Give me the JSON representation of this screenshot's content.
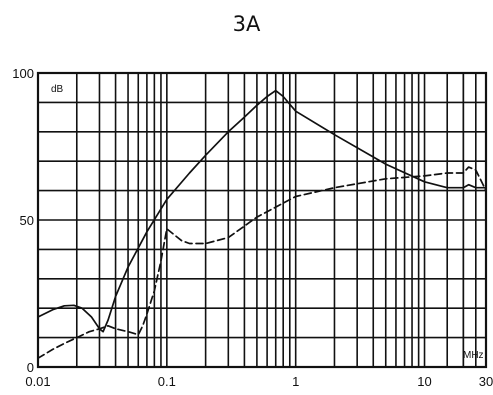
{
  "chart_data": {
    "type": "line",
    "title": "3A",
    "x_unit_label": "MHz",
    "y_unit_label": "dB",
    "x_scale": "log",
    "xlim": [
      0.01,
      30
    ],
    "ylim": [
      0,
      100
    ],
    "grid": true,
    "x_tick_labels": [
      {
        "value": 0.01,
        "label": "0.01"
      },
      {
        "value": 0.1,
        "label": "0.1"
      },
      {
        "value": 1,
        "label": "1"
      },
      {
        "value": 10,
        "label": "10"
      },
      {
        "value": 30,
        "label": "30"
      }
    ],
    "y_tick_labels": [
      {
        "value": 0,
        "label": "0"
      },
      {
        "value": 50,
        "label": "50"
      },
      {
        "value": 100,
        "label": "100"
      }
    ],
    "series": [
      {
        "style": "solid",
        "x": [
          0.01,
          0.013,
          0.016,
          0.019,
          0.022,
          0.026,
          0.03,
          0.032,
          0.035,
          0.04,
          0.05,
          0.07,
          0.1,
          0.15,
          0.2,
          0.3,
          0.4,
          0.5,
          0.6,
          0.7,
          0.8,
          1,
          2,
          5,
          10,
          15,
          20,
          22,
          25,
          30
        ],
        "y": [
          17,
          19.5,
          20.8,
          21,
          20,
          17,
          13,
          12,
          16,
          24,
          34,
          46,
          57,
          66,
          72,
          80,
          85,
          89,
          92,
          94,
          92,
          87,
          79,
          69,
          63,
          61,
          61,
          62,
          61,
          61
        ]
      },
      {
        "style": "dashed",
        "x": [
          0.01,
          0.013,
          0.016,
          0.02,
          0.025,
          0.03,
          0.035,
          0.04,
          0.05,
          0.06,
          0.065,
          0.07,
          0.08,
          0.09,
          0.1,
          0.13,
          0.15,
          0.2,
          0.3,
          0.5,
          1,
          2,
          5,
          10,
          15,
          20,
          22,
          25,
          30
        ],
        "y": [
          3,
          6,
          8,
          10,
          12,
          13,
          14,
          13,
          12,
          11,
          14,
          18,
          26,
          36,
          47,
          43,
          42,
          42,
          44,
          51,
          58,
          61,
          64,
          65,
          66,
          66,
          68,
          67,
          60
        ]
      }
    ]
  }
}
